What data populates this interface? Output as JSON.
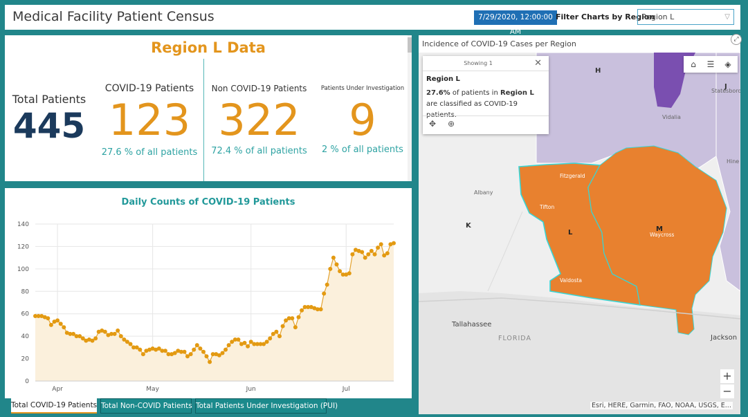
{
  "header": {
    "title": "Medical Facility Patient Census",
    "date": "7/29/2020, 12:00:00 AM",
    "filter_label": "Filter Charts by Region",
    "region_selected": "Region L"
  },
  "kpi": {
    "title": "Region L Data",
    "total": {
      "label": "Total Patients",
      "value": "445"
    },
    "covid": {
      "label": "COVID-19 Patients",
      "value": "123",
      "sub": "27.6 % of all patients"
    },
    "noncovid": {
      "label": "Non COVID-19 Patients",
      "value": "322",
      "sub": "72.4 % of all patients"
    },
    "pui": {
      "label": "Patients Under Investigation",
      "value": "9",
      "sub": "2 % of all patients"
    }
  },
  "colors": {
    "accent_orange": "#e3951d",
    "teal": "#2ea3a3",
    "navy": "#1b3a5c",
    "map_orange": "#e8812f"
  },
  "chart_data": {
    "type": "area",
    "title": "Daily Counts of COVID-19 Patients",
    "xlabel": "",
    "ylabel": "",
    "ylim": [
      0,
      140
    ],
    "yticks": [
      0,
      20,
      40,
      60,
      80,
      100,
      120,
      140
    ],
    "x_tick_labels": [
      "Apr",
      "May",
      "Jun",
      "Jul"
    ],
    "x_tick_days": [
      7,
      37,
      68,
      98
    ],
    "grid": true,
    "x_start": "2020-03-23",
    "values": [
      58,
      58,
      58,
      57,
      56,
      50,
      53,
      54,
      51,
      48,
      43,
      42,
      42,
      40,
      40,
      38,
      36,
      37,
      36,
      38,
      44,
      45,
      44,
      41,
      42,
      42,
      45,
      40,
      37,
      35,
      33,
      30,
      30,
      28,
      24,
      27,
      28,
      29,
      28,
      29,
      27,
      27,
      24,
      24,
      25,
      27,
      26,
      26,
      22,
      24,
      28,
      32,
      29,
      26,
      22,
      17,
      24,
      24,
      23,
      25,
      28,
      32,
      35,
      37,
      37,
      33,
      34,
      31,
      35,
      33,
      33,
      33,
      33,
      35,
      38,
      42,
      44,
      40,
      49,
      54,
      56,
      56,
      48,
      57,
      63,
      66,
      66,
      66,
      65,
      64,
      64,
      78,
      86,
      100,
      110,
      104,
      98,
      95,
      95,
      96,
      113,
      117,
      116,
      115,
      110,
      113,
      116,
      113,
      119,
      122,
      112,
      114,
      122,
      123
    ],
    "series": [
      {
        "name": "Total COVID-19 Patients"
      }
    ]
  },
  "tabs": [
    {
      "label": "Total COVID-19 Patients",
      "active": true
    },
    {
      "label": "Total Non-COVID Patients",
      "active": false
    },
    {
      "label": "Total Patients Under Investigation (PUI)",
      "active": false
    }
  ],
  "map": {
    "title": "Incidence of COVID-19 Cases per Region",
    "popup": {
      "showing": "Showing 1",
      "heading": "Region L",
      "pct": "27.6%",
      "text_mid": " of patients in ",
      "region": "Region L",
      "text_end": " are classified as COVID-19 patients."
    },
    "labels": {
      "H": "H",
      "J": "J",
      "K": "K",
      "L": "L",
      "M": "M",
      "statesboro": "Statesboro",
      "vidalia": "Vidalia",
      "hinesville": "Hine",
      "albany": "Albany",
      "fitzgerald": "Fitzgerald",
      "tifton": "Tifton",
      "waycross": "Waycross",
      "valdosta": "Valdosta",
      "tallahassee": "Tallahassee",
      "florida": "FLORIDA",
      "jacksonville": "Jackson"
    },
    "attribution": "Esri, HERE, Garmin, FAO, NOAA, USGS, E...",
    "zoom_in": "+",
    "zoom_out": "−"
  }
}
